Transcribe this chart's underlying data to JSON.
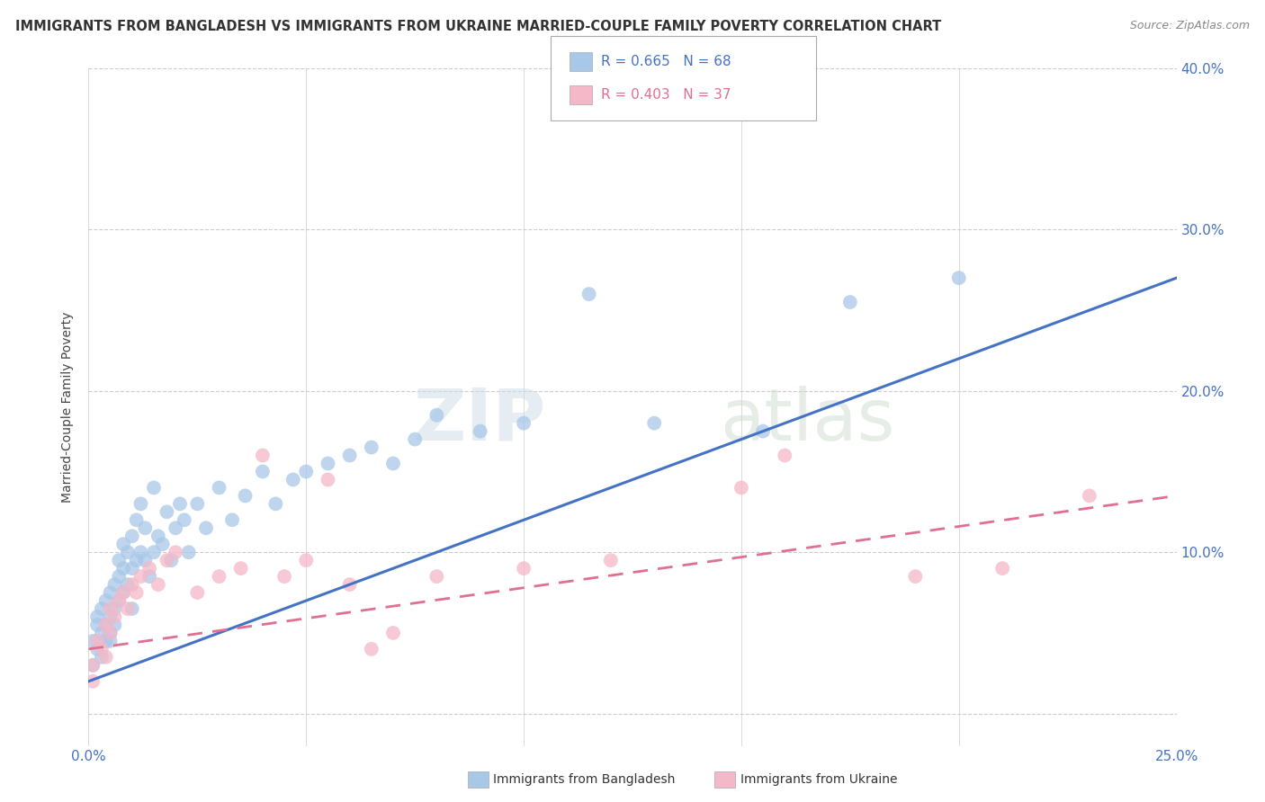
{
  "title": "IMMIGRANTS FROM BANGLADESH VS IMMIGRANTS FROM UKRAINE MARRIED-COUPLE FAMILY POVERTY CORRELATION CHART",
  "source": "Source: ZipAtlas.com",
  "ylabel": "Married-Couple Family Poverty",
  "xlim": [
    0.0,
    0.25
  ],
  "ylim": [
    -0.02,
    0.4
  ],
  "xticks": [
    0.0,
    0.05,
    0.1,
    0.15,
    0.2,
    0.25
  ],
  "yticks": [
    0.0,
    0.1,
    0.2,
    0.3,
    0.4
  ],
  "bangladesh_color": "#a8c8e8",
  "ukraine_color": "#f4b8c8",
  "bangladesh_line_color": "#4472c4",
  "ukraine_line_color": "#e07090",
  "bangladesh_R": 0.665,
  "bangladesh_N": 68,
  "ukraine_R": 0.403,
  "ukraine_N": 37,
  "bangladesh_scatter_x": [
    0.001,
    0.001,
    0.002,
    0.002,
    0.002,
    0.003,
    0.003,
    0.003,
    0.004,
    0.004,
    0.004,
    0.005,
    0.005,
    0.005,
    0.005,
    0.006,
    0.006,
    0.006,
    0.007,
    0.007,
    0.007,
    0.008,
    0.008,
    0.008,
    0.009,
    0.009,
    0.01,
    0.01,
    0.01,
    0.011,
    0.011,
    0.012,
    0.012,
    0.013,
    0.013,
    0.014,
    0.015,
    0.015,
    0.016,
    0.017,
    0.018,
    0.019,
    0.02,
    0.021,
    0.022,
    0.023,
    0.025,
    0.027,
    0.03,
    0.033,
    0.036,
    0.04,
    0.043,
    0.047,
    0.05,
    0.055,
    0.06,
    0.065,
    0.07,
    0.075,
    0.08,
    0.09,
    0.1,
    0.115,
    0.13,
    0.155,
    0.175,
    0.2
  ],
  "bangladesh_scatter_y": [
    0.03,
    0.045,
    0.04,
    0.06,
    0.055,
    0.05,
    0.035,
    0.065,
    0.045,
    0.07,
    0.055,
    0.06,
    0.05,
    0.075,
    0.045,
    0.065,
    0.08,
    0.055,
    0.07,
    0.085,
    0.095,
    0.075,
    0.09,
    0.105,
    0.08,
    0.1,
    0.065,
    0.09,
    0.11,
    0.095,
    0.12,
    0.1,
    0.13,
    0.095,
    0.115,
    0.085,
    0.1,
    0.14,
    0.11,
    0.105,
    0.125,
    0.095,
    0.115,
    0.13,
    0.12,
    0.1,
    0.13,
    0.115,
    0.14,
    0.12,
    0.135,
    0.15,
    0.13,
    0.145,
    0.15,
    0.155,
    0.16,
    0.165,
    0.155,
    0.17,
    0.185,
    0.175,
    0.18,
    0.26,
    0.18,
    0.175,
    0.255,
    0.27
  ],
  "ukraine_scatter_x": [
    0.001,
    0.001,
    0.002,
    0.003,
    0.004,
    0.004,
    0.005,
    0.005,
    0.006,
    0.007,
    0.008,
    0.009,
    0.01,
    0.011,
    0.012,
    0.014,
    0.016,
    0.018,
    0.02,
    0.025,
    0.03,
    0.035,
    0.04,
    0.045,
    0.05,
    0.055,
    0.06,
    0.065,
    0.07,
    0.08,
    0.1,
    0.12,
    0.15,
    0.16,
    0.19,
    0.21,
    0.23
  ],
  "ukraine_scatter_y": [
    0.03,
    0.02,
    0.045,
    0.04,
    0.035,
    0.055,
    0.05,
    0.065,
    0.06,
    0.07,
    0.075,
    0.065,
    0.08,
    0.075,
    0.085,
    0.09,
    0.08,
    0.095,
    0.1,
    0.075,
    0.085,
    0.09,
    0.16,
    0.085,
    0.095,
    0.145,
    0.08,
    0.04,
    0.05,
    0.085,
    0.09,
    0.095,
    0.14,
    0.16,
    0.085,
    0.09,
    0.135
  ],
  "watermark_zip": "ZIP",
  "watermark_atlas": "atlas",
  "background_color": "#ffffff",
  "grid_color": "#cccccc"
}
